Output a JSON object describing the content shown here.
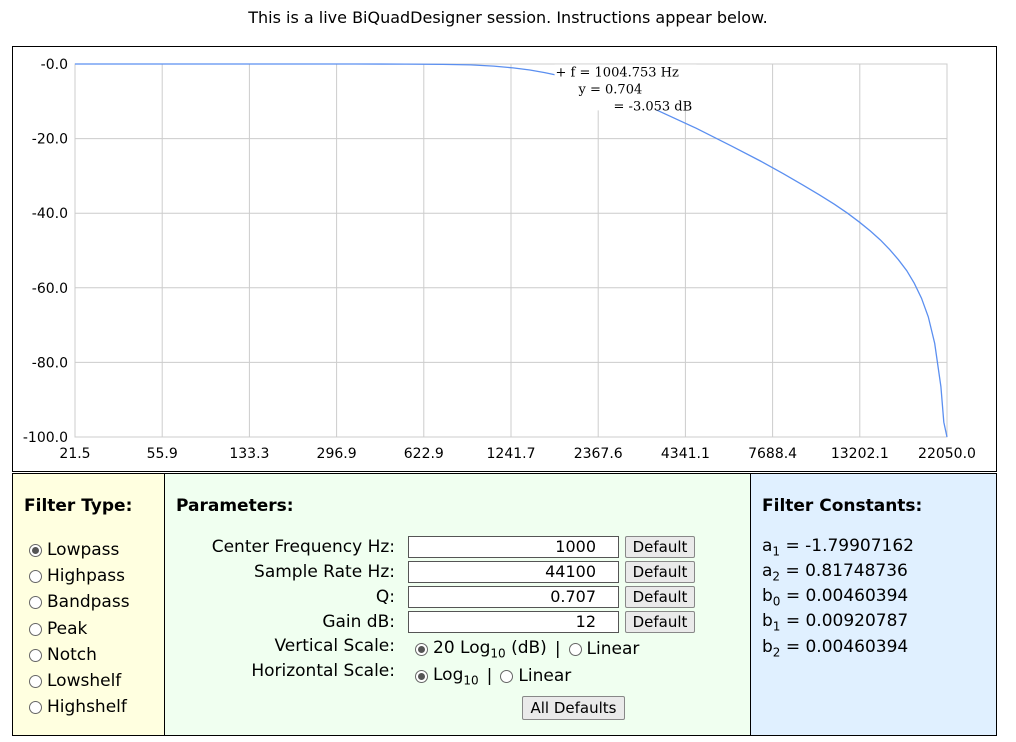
{
  "header": {
    "text": "This is a live BiQuadDesigner session. Instructions appear below."
  },
  "chart_data": {
    "type": "line",
    "x_scale": "log",
    "xlim": [
      21.5,
      22050.0
    ],
    "ylim": [
      -100.0,
      0.0
    ],
    "x_tick_labels": [
      "21.5",
      "55.9",
      "133.3",
      "296.9",
      "622.9",
      "1241.7",
      "2367.6",
      "4341.1",
      "7688.4",
      "13202.1",
      "22050.0"
    ],
    "y_tick_labels": [
      "-0.0",
      "-20.0",
      "-40.0",
      "-60.0",
      "-80.0",
      "-100.0"
    ],
    "grid": true,
    "series": [
      {
        "color": "#5b8ff0",
        "x": [
          21.5,
          100,
          200,
          300,
          400,
          500,
          600,
          700,
          800,
          900,
          1000,
          1200,
          1500,
          2000,
          3000,
          4000,
          5000,
          6000,
          7000,
          8000,
          9000,
          10000,
          11000,
          12000,
          13000,
          14000,
          15000,
          16000,
          17000,
          18000,
          19000,
          20000,
          21000,
          21500,
          22050
        ],
        "y": [
          0.0,
          -0.01,
          -0.01,
          -0.02,
          -0.1,
          -0.25,
          -0.55,
          -1.05,
          -1.6,
          -2.3,
          -3.05,
          -4.75,
          -7.2,
          -10.9,
          -17.2,
          -22.1,
          -26.0,
          -29.4,
          -32.4,
          -35.1,
          -37.6,
          -40.0,
          -42.4,
          -44.8,
          -47.2,
          -49.8,
          -52.5,
          -55.4,
          -58.8,
          -62.8,
          -67.8,
          -74.9,
          -86.5,
          -96.0,
          -100.0
        ]
      }
    ],
    "cursor": {
      "f": "1004.753",
      "f_unit": "Hz",
      "y_linear": "0.704",
      "y_db": "-3.053",
      "y_unit": "dB"
    }
  },
  "readout": {
    "line1": "+ f = 1004.753 Hz",
    "line2": "y = 0.704",
    "line3": "= -3.053 dB"
  },
  "filter_type": {
    "title": "Filter Type:",
    "options": [
      "Lowpass",
      "Highpass",
      "Bandpass",
      "Peak",
      "Notch",
      "Lowshelf",
      "Highshelf"
    ],
    "selected": "Lowpass"
  },
  "parameters": {
    "title": "Parameters:",
    "center_freq": {
      "label": "Center Frequency Hz:",
      "value": "1000",
      "button": "Default"
    },
    "sample_rate": {
      "label": "Sample Rate Hz:",
      "value": "44100",
      "button": "Default"
    },
    "q": {
      "label": "Q:",
      "value": "0.707",
      "button": "Default"
    },
    "gain": {
      "label": "Gain dB:",
      "value": "12",
      "button": "Default"
    },
    "vertical_scale": {
      "label": "Vertical Scale:",
      "opt1_prefix": "20 Log",
      "opt1_sub": "10",
      "opt1_suffix": " (dB)",
      "separator": "|",
      "opt2": "Linear",
      "selected": "opt1"
    },
    "horizontal_scale": {
      "label": "Horizontal Scale:",
      "opt1_prefix": "Log",
      "opt1_sub": "10",
      "separator": "|",
      "opt2": "Linear",
      "selected": "opt1"
    },
    "all_defaults": "All Defaults"
  },
  "constants": {
    "title": "Filter Constants:",
    "rows": [
      {
        "sym": "a",
        "sub": "1",
        "value": "= -1.79907162"
      },
      {
        "sym": "a",
        "sub": "2",
        "value": "= 0.81748736"
      },
      {
        "sym": "b",
        "sub": "0",
        "value": "= 0.00460394"
      },
      {
        "sym": "b",
        "sub": "1",
        "value": "= 0.00920787"
      },
      {
        "sym": "b",
        "sub": "2",
        "value": "= 0.00460394"
      }
    ]
  }
}
